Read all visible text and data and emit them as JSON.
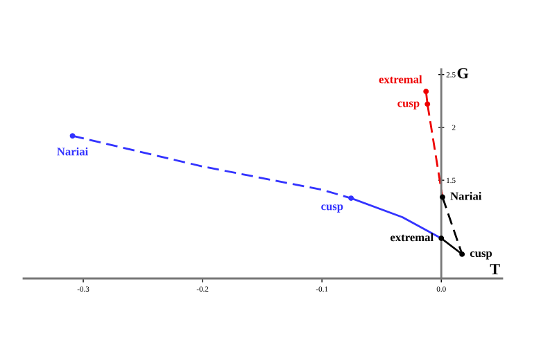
{
  "chart_data": {
    "type": "line",
    "xlabel": "T",
    "ylabel": "G",
    "xlim": [
      -0.35,
      0.051
    ],
    "ylim": [
      0.57,
      2.55
    ],
    "xticks": [
      {
        "value": -0.3,
        "label": "-0.3"
      },
      {
        "value": -0.2,
        "label": "-0.2"
      },
      {
        "value": -0.1,
        "label": "-0.1"
      },
      {
        "value": 0,
        "label": "0.0"
      }
    ],
    "yticks": [
      1.5,
      2,
      2.5
    ],
    "grid": false,
    "legend": false,
    "series": [
      {
        "color": "#3333ff",
        "line_style": "dashed",
        "x": [
          -0.309,
          -0.2,
          -0.1,
          -0.0756
        ],
        "values": [
          1.92,
          1.63,
          1.41,
          1.33
        ]
      },
      {
        "color": "#3333ff",
        "line_style": "solid",
        "x": [
          -0.0756,
          -0.0326,
          0.0
        ],
        "values": [
          1.33,
          1.15,
          0.95
        ]
      },
      {
        "color": "#ee0000",
        "line_style": "solid",
        "x": [
          -0.0128,
          -0.0116
        ],
        "values": [
          2.34,
          2.22
        ]
      },
      {
        "color": "#ee0000",
        "line_style": "dashed",
        "x": [
          -0.0116,
          0.001
        ],
        "values": [
          2.22,
          1.34
        ]
      },
      {
        "color": "#000000",
        "line_style": "solid",
        "x": [
          0.0,
          0.0174
        ],
        "values": [
          0.95,
          0.8
        ]
      },
      {
        "color": "#000000",
        "line_style": "dashed",
        "x": [
          0.001,
          0.0174
        ],
        "values": [
          1.34,
          0.8
        ]
      },
      {
        "type": "scatter",
        "marker": "circle",
        "x": [
          -0.309,
          -0.0756,
          -0.0128,
          -0.0116,
          0.001,
          0.0,
          0.0174
        ],
        "values": [
          1.92,
          1.33,
          2.34,
          2.22,
          1.34,
          0.95,
          0.8
        ],
        "colors": [
          "#3333ff",
          "#3333ff",
          "#ee0000",
          "#ee0000",
          "#000000",
          "#000000",
          "#000000"
        ]
      }
    ],
    "annotations": [
      {
        "text": "Nariai",
        "x": -0.309,
        "y": 1.92
      },
      {
        "text": "cusp",
        "x": -0.0756,
        "y": 1.33
      },
      {
        "text": "extremal",
        "x": -0.0128,
        "y": 2.34
      },
      {
        "text": "cusp",
        "x": -0.0116,
        "y": 2.22
      },
      {
        "text": "Nariai",
        "x": 0.001,
        "y": 1.34
      },
      {
        "text": "extremal",
        "x": 0.0,
        "y": 0.95
      },
      {
        "text": "cusp",
        "x": 0.0174,
        "y": 0.8
      }
    ]
  }
}
